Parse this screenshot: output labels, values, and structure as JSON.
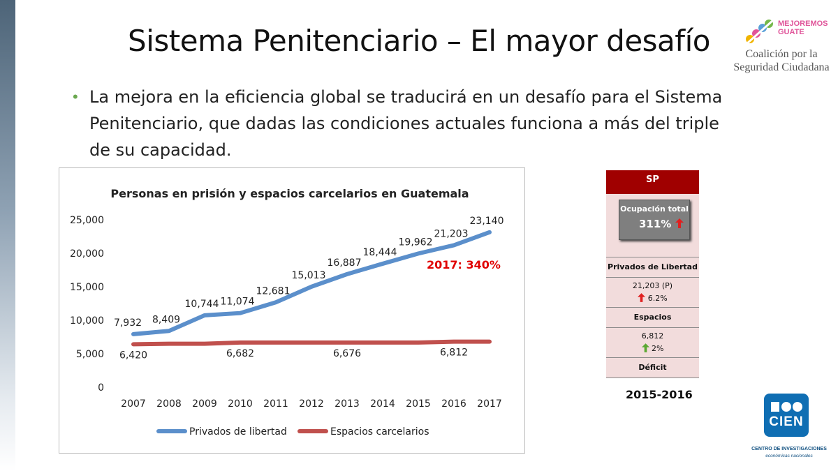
{
  "slide": {
    "title": "Sistema Penitenciario – El mayor desafío",
    "bullet": "La mejora en la eficiencia global se traducirá en un desafío para el Sistema Penitenciario, que dadas las condiciones actuales funciona a más del triple de su capacidad."
  },
  "logos": {
    "mejoremos_line1": "MEJOREMOS",
    "mejoremos_line2": "GUATE",
    "coalicion_line1": "Coalición por la",
    "coalicion_line2": "Seguridad Ciudadana",
    "cien_word": "CIEN",
    "cien_line1": "CENTRO DE INVESTIGACIONES",
    "cien_line2": "económicas nacionales"
  },
  "colors": {
    "privados": "#5b8fcb",
    "espacios": "#c0504d",
    "callout": "#e00000",
    "sp_head": "#a00000",
    "sp_body": "#f2dcdc"
  },
  "chart_data": {
    "type": "line",
    "title": "Personas en prisión y espacios carcelarios en Guatemala",
    "categories": [
      "2007",
      "2008",
      "2009",
      "2010",
      "2011",
      "2012",
      "2013",
      "2014",
      "2015",
      "2016",
      "2017"
    ],
    "series": [
      {
        "name": "Privados de libertad",
        "values": [
          7932,
          8409,
          10744,
          11074,
          12681,
          15013,
          16887,
          18444,
          19962,
          21203,
          23140
        ]
      },
      {
        "name": "Espacios carcelarios",
        "values": [
          6420,
          6500,
          6500,
          6682,
          6682,
          6682,
          6676,
          6676,
          6676,
          6812,
          6812
        ]
      }
    ],
    "data_labels": {
      "Privados de libertad": [
        "7,932",
        "8,409",
        "10,744",
        "11,074",
        "12,681",
        "15,013",
        "16,887",
        "18,444",
        "19,962",
        "21,203",
        "23,140"
      ],
      "Espacios carcelarios": [
        {
          "index": 0,
          "text": "6,420"
        },
        {
          "index": 3,
          "text": "6,682"
        },
        {
          "index": 6,
          "text": "6,676"
        },
        {
          "index": 9,
          "text": "6,812"
        }
      ]
    },
    "y_ticks": [
      "0",
      "5,000",
      "10,000",
      "15,000",
      "20,000",
      "25,000"
    ],
    "ylim": [
      0,
      25000
    ],
    "annotation": "2017: 340%",
    "legend_position": "bottom"
  },
  "sp_table": {
    "header": "SP",
    "occupation_label": "Ocupación total",
    "occupation_value": "311%",
    "privados_label": "Privados de Libertad",
    "privados_value": "21,203 (P)",
    "privados_change": "6.2%",
    "espacios_label": "Espacios",
    "espacios_value": "6,812",
    "espacios_change": "2%",
    "deficit_label": "Déficit"
  },
  "period": "2015-2016"
}
